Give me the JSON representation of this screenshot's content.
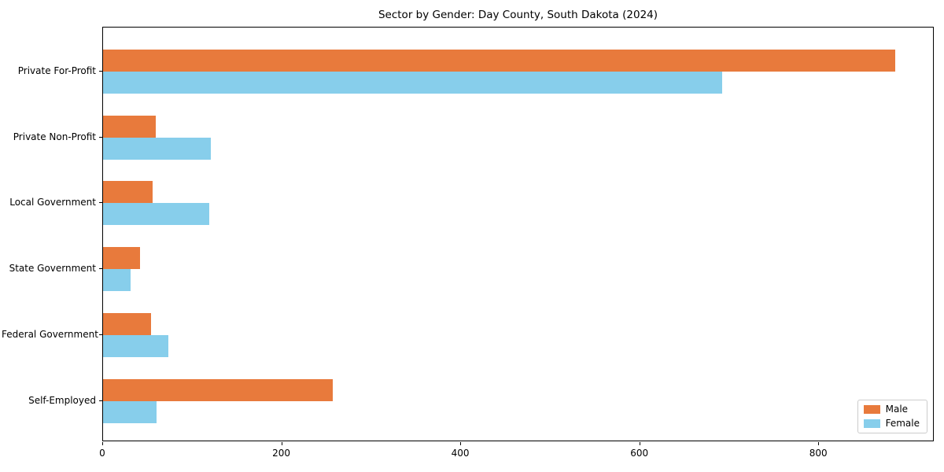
{
  "chart_data": {
    "type": "bar",
    "orientation": "horizontal",
    "title": "Sector by Gender: Day County, South Dakota (2024)",
    "categories": [
      "Private For-Profit",
      "Private Non-Profit",
      "Local Government",
      "State Government",
      "Federal Government",
      "Self-Employed"
    ],
    "series": [
      {
        "name": "Male",
        "color": "#E87A3C",
        "values": [
          885,
          59,
          55,
          41,
          54,
          257
        ]
      },
      {
        "name": "Female",
        "color": "#87CEEB",
        "values": [
          692,
          120,
          119,
          31,
          73,
          60
        ]
      }
    ],
    "x_axis": {
      "ticks": [
        0,
        200,
        400,
        600,
        800
      ],
      "max": 929
    },
    "y_axis": {
      "inverted": true
    },
    "legend": {
      "position": "lower right"
    },
    "grid": false,
    "background_color": "#ffffff",
    "spine_color": "#000000"
  }
}
